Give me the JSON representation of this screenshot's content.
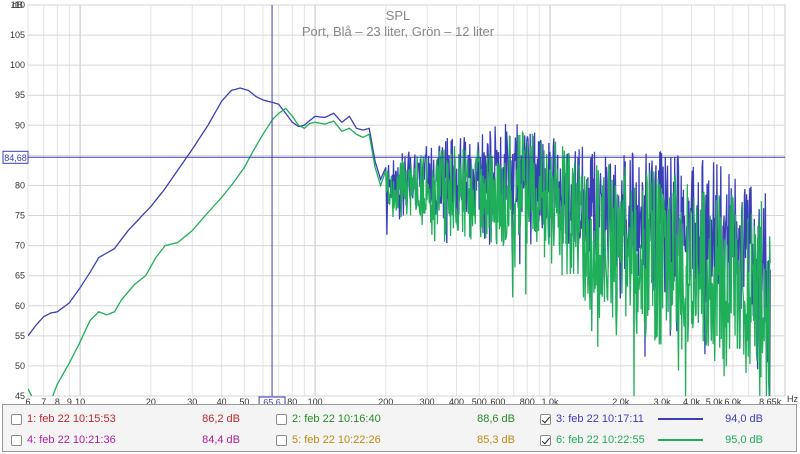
{
  "chart_data": {
    "type": "line",
    "title": "SPL",
    "subtitle": "Port, Blå – 23 liter, Grön – 12 liter",
    "ylabel": "dB",
    "xlabel": "Hz",
    "x_scale": "log",
    "xlim": [
      6,
      10000
    ],
    "ylim": [
      45,
      110
    ],
    "y_ticks": [
      45,
      50,
      55,
      60,
      65,
      70,
      75,
      80,
      85,
      90,
      95,
      100,
      105,
      110
    ],
    "x_ticks": [
      6,
      7,
      8,
      9,
      10,
      20,
      30,
      40,
      50,
      65.6,
      80,
      100,
      200,
      300,
      400,
      500,
      600,
      800,
      1000,
      2000,
      3000,
      4000,
      5000,
      6000,
      8650
    ],
    "x_tick_labels": [
      "6",
      "7",
      "8",
      "9",
      "10",
      "20",
      "30",
      "40",
      "50",
      "65,6",
      "80",
      "100",
      "200",
      "300",
      "400",
      "500",
      "600",
      "800",
      "1,0k",
      "2,0k",
      "3,0k",
      "4,0k",
      "5,0k",
      "6,0k",
      "8,65k"
    ],
    "cursor": {
      "x_label": "65,6",
      "y_label": "84,68",
      "x": 65.6,
      "y": 84.68
    },
    "grid": true,
    "series": [
      {
        "color": "#3a3fb8",
        "smooth_points": [
          [
            6,
            55
          ],
          [
            6.5,
            56.8
          ],
          [
            7,
            58.2
          ],
          [
            7.5,
            58.8
          ],
          [
            8,
            59
          ],
          [
            9,
            60.5
          ],
          [
            10,
            63
          ],
          [
            11,
            65.5
          ],
          [
            12,
            68
          ],
          [
            14,
            69.5
          ],
          [
            16,
            72.5
          ],
          [
            20,
            76.5
          ],
          [
            23,
            79.5
          ],
          [
            26,
            82.5
          ],
          [
            30,
            86
          ],
          [
            35,
            90
          ],
          [
            40,
            94
          ],
          [
            44,
            95.8
          ],
          [
            48,
            96.2
          ],
          [
            52,
            95.8
          ],
          [
            56,
            94.8
          ],
          [
            60,
            94.2
          ],
          [
            66,
            93.8
          ],
          [
            70,
            93.5
          ],
          [
            75,
            92
          ],
          [
            80,
            90.5
          ],
          [
            85,
            89.8
          ],
          [
            90,
            90
          ],
          [
            95,
            90.8
          ],
          [
            100,
            91.5
          ],
          [
            110,
            91.3
          ],
          [
            120,
            92
          ],
          [
            130,
            90.5
          ],
          [
            140,
            91.5
          ],
          [
            150,
            89.5
          ],
          [
            160,
            89.2
          ],
          [
            170,
            89.5
          ],
          [
            180,
            84
          ],
          [
            190,
            81
          ],
          [
            200,
            83
          ]
        ],
        "noisy_start": 200,
        "noisy_end": 8650,
        "noisy_center": [
          [
            200,
            81
          ],
          [
            300,
            81
          ],
          [
            500,
            82
          ],
          [
            800,
            83
          ],
          [
            1000,
            80
          ],
          [
            2000,
            75
          ],
          [
            3000,
            74
          ],
          [
            5000,
            72
          ],
          [
            8650,
            68
          ]
        ],
        "noisy_amplitude": [
          [
            200,
            4
          ],
          [
            400,
            7
          ],
          [
            800,
            8
          ],
          [
            1500,
            9
          ],
          [
            3000,
            12
          ],
          [
            8650,
            12
          ]
        ]
      },
      {
        "color": "#1fae5a",
        "smooth_points": [
          [
            6,
            46.2
          ],
          [
            6.3,
            44.5
          ],
          [
            7,
            41
          ],
          [
            8,
            47
          ],
          [
            9,
            50.5
          ],
          [
            10,
            54
          ],
          [
            11,
            57.5
          ],
          [
            12,
            59
          ],
          [
            13,
            58.5
          ],
          [
            14,
            59
          ],
          [
            15,
            61
          ],
          [
            17,
            63.5
          ],
          [
            19,
            65
          ],
          [
            21,
            68
          ],
          [
            23,
            70
          ],
          [
            26,
            70.5
          ],
          [
            30,
            72.5
          ],
          [
            35,
            75.5
          ],
          [
            40,
            78
          ],
          [
            45,
            80.5
          ],
          [
            50,
            83
          ],
          [
            55,
            86
          ],
          [
            60,
            88.5
          ],
          [
            66,
            91
          ],
          [
            70,
            92
          ],
          [
            75,
            92.8
          ],
          [
            80,
            91.5
          ],
          [
            85,
            90
          ],
          [
            90,
            89.5
          ],
          [
            95,
            90.3
          ],
          [
            100,
            90.5
          ],
          [
            110,
            90.2
          ],
          [
            120,
            90.7
          ],
          [
            130,
            89
          ],
          [
            140,
            89.5
          ],
          [
            150,
            88.5
          ],
          [
            160,
            88
          ],
          [
            170,
            88.5
          ],
          [
            180,
            83
          ],
          [
            190,
            80
          ],
          [
            200,
            82.5
          ]
        ],
        "noisy_start": 200,
        "noisy_end": 8650,
        "noisy_center": [
          [
            200,
            80
          ],
          [
            300,
            79
          ],
          [
            500,
            79
          ],
          [
            800,
            79
          ],
          [
            1000,
            77
          ],
          [
            2000,
            70
          ],
          [
            3000,
            68
          ],
          [
            5000,
            65
          ],
          [
            8650,
            62
          ]
        ],
        "noisy_amplitude": [
          [
            200,
            4
          ],
          [
            400,
            8
          ],
          [
            800,
            10
          ],
          [
            1500,
            12
          ],
          [
            3000,
            15
          ],
          [
            8650,
            15
          ]
        ]
      }
    ]
  },
  "legend": {
    "rows": [
      [
        {
          "label": "1: feb 22 10:15:53",
          "value": "86,2 dB",
          "color": "#c0272d",
          "checked": false
        },
        {
          "label": "2: feb 22 10:16:40",
          "value": "88,6 dB",
          "color": "#2a8a2a",
          "checked": false
        },
        {
          "label": "3: feb 22 10:17:11",
          "value": "94,0 dB",
          "color": "#3a3fb8",
          "checked": true
        }
      ],
      [
        {
          "label": "4: feb 22 10:21:36",
          "value": "84,4 dB",
          "color": "#b01fa0",
          "checked": false
        },
        {
          "label": "5: feb 22 10:22:26",
          "value": "85,3 dB",
          "color": "#c28a10",
          "checked": false
        },
        {
          "label": "6: feb 22 10:22:55",
          "value": "95,0 dB",
          "color": "#1fae5a",
          "checked": true
        }
      ]
    ]
  }
}
